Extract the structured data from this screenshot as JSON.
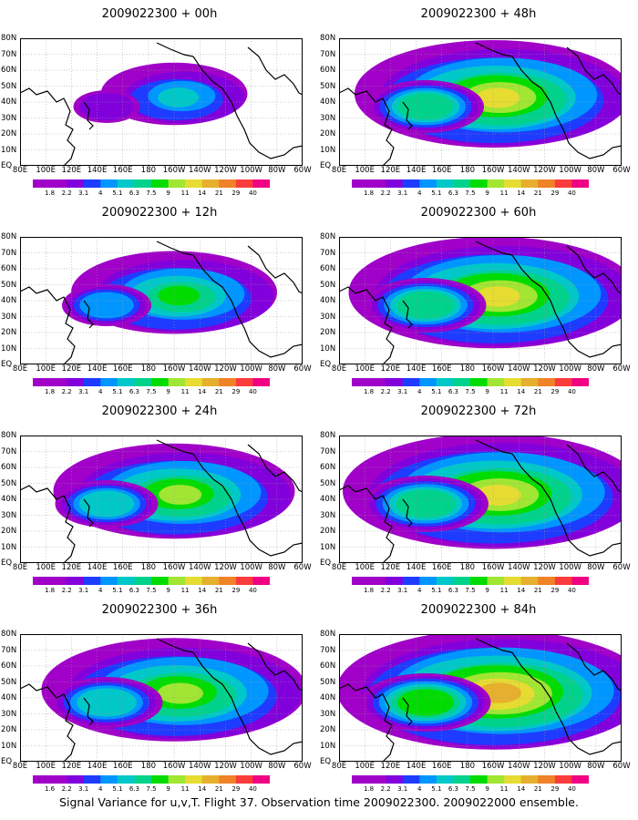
{
  "caption": "Signal Variance for u,v,T. Flight 37. Observation time 2009022300. 2009022000 ensemble.",
  "panels": [
    {
      "title": "2009022300 + 00h",
      "spread": 0.25,
      "intensity": 0.55
    },
    {
      "title": "2009022300 + 48h",
      "spread": 0.8,
      "intensity": 0.55
    },
    {
      "title": "2009022300 + 12h",
      "spread": 0.5,
      "intensity": 0.45
    },
    {
      "title": "2009022300 + 60h",
      "spread": 0.85,
      "intensity": 0.6
    },
    {
      "title": "2009022300 + 24h",
      "spread": 0.65,
      "intensity": 0.45
    },
    {
      "title": "2009022300 + 72h",
      "spread": 0.9,
      "intensity": 0.7
    },
    {
      "title": "2009022300 + 36h",
      "spread": 0.75,
      "intensity": 0.45
    },
    {
      "title": "2009022300 + 84h",
      "spread": 0.95,
      "intensity": 0.75
    }
  ],
  "lon_labels": [
    "80E",
    "100E",
    "120E",
    "140E",
    "160E",
    "180",
    "160W",
    "140W",
    "120W",
    "100W",
    "80W",
    "60W"
  ],
  "lat_labels": [
    "80N",
    "70N",
    "60N",
    "50N",
    "40N",
    "30N",
    "20N",
    "10N",
    "EQ"
  ],
  "colorbar": {
    "labels": [
      "1.8",
      "2.2",
      "3.1",
      "4",
      "5.1",
      "6.3",
      "7.5",
      "9",
      "11",
      "14",
      "21",
      "29",
      "40"
    ],
    "labels_panel_00h": [
      "1.8",
      "2.2",
      "3.1",
      "4",
      "5.1",
      "6.3",
      "7.5",
      "9",
      "11",
      "14",
      "21",
      "29",
      "40"
    ],
    "labels_panel_36h": [
      "1.6",
      "2.2",
      "3.1",
      "4",
      "5.1",
      "6.3",
      "7.5",
      "9",
      "11",
      "14",
      "21",
      "29",
      "40"
    ],
    "colors": [
      "#a000c8",
      "#8200dc",
      "#1e3cff",
      "#0096ff",
      "#00c8c8",
      "#00d28c",
      "#00dc00",
      "#a0e632",
      "#e6dc32",
      "#e6af2d",
      "#f08228",
      "#fa3c3c",
      "#f00082"
    ]
  },
  "circles_note": ""
}
